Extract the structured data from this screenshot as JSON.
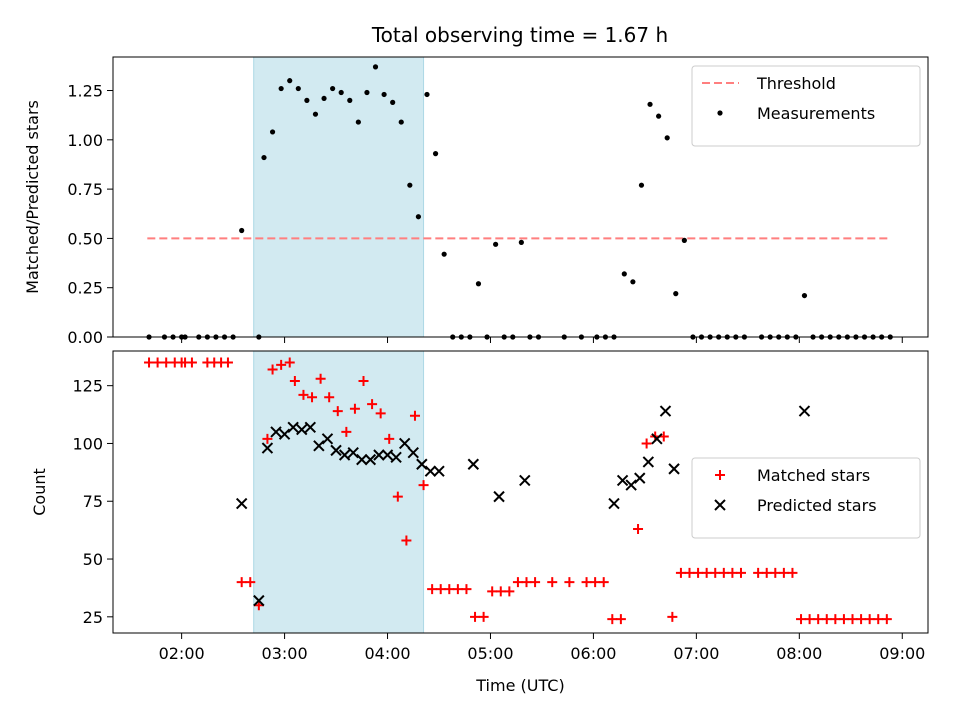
{
  "title": "Total observing time = 1.67 h",
  "colors": {
    "threshold": "#ff7f7f",
    "measurements": "#000000",
    "matched": "#ff0000",
    "predicted": "#000000",
    "highlight": "#add8e6"
  },
  "chart_data": [
    {
      "type": "scatter",
      "ylabel": "Matched/Predicted stars",
      "xlabel": "",
      "xlim": [
        "01:20",
        "09:15"
      ],
      "ylim": [
        0,
        1.42
      ],
      "yticks": [
        "0.00",
        "0.25",
        "0.50",
        "0.75",
        "1.00",
        "1.25"
      ],
      "highlight_span": [
        "02:42",
        "04:21"
      ],
      "legend_position": "upper right",
      "threshold": {
        "name": "Threshold",
        "value": 0.5,
        "x_range": [
          "01:40",
          "08:52"
        ]
      },
      "series": [
        {
          "name": "Measurements",
          "points": [
            [
              "01:41",
              0
            ],
            [
              "01:50",
              0
            ],
            [
              "01:55",
              0
            ],
            [
              "02:00",
              0
            ],
            [
              "02:02",
              0
            ],
            [
              "02:10",
              0
            ],
            [
              "02:15",
              0
            ],
            [
              "02:20",
              0
            ],
            [
              "02:25",
              0
            ],
            [
              "02:30",
              0
            ],
            [
              "02:35",
              0.54
            ],
            [
              "02:45",
              0
            ],
            [
              "02:48",
              0.91
            ],
            [
              "02:53",
              1.04
            ],
            [
              "02:58",
              1.26
            ],
            [
              "03:03",
              1.3
            ],
            [
              "03:08",
              1.26
            ],
            [
              "03:13",
              1.2
            ],
            [
              "03:18",
              1.13
            ],
            [
              "03:23",
              1.21
            ],
            [
              "03:28",
              1.26
            ],
            [
              "03:33",
              1.24
            ],
            [
              "03:38",
              1.2
            ],
            [
              "03:43",
              1.09
            ],
            [
              "03:48",
              1.24
            ],
            [
              "03:53",
              1.37
            ],
            [
              "03:58",
              1.23
            ],
            [
              "04:03",
              1.19
            ],
            [
              "04:08",
              1.09
            ],
            [
              "04:13",
              0.77
            ],
            [
              "04:18",
              0.61
            ],
            [
              "04:23",
              1.23
            ],
            [
              "04:28",
              0.93
            ],
            [
              "04:33",
              0.42
            ],
            [
              "04:38",
              0
            ],
            [
              "04:43",
              0
            ],
            [
              "04:48",
              0
            ],
            [
              "04:53",
              0.27
            ],
            [
              "04:58",
              0
            ],
            [
              "05:03",
              0.47
            ],
            [
              "05:08",
              0
            ],
            [
              "05:13",
              0
            ],
            [
              "05:18",
              0.48
            ],
            [
              "05:23",
              0
            ],
            [
              "05:28",
              0
            ],
            [
              "05:43",
              0
            ],
            [
              "05:53",
              0
            ],
            [
              "06:02",
              0
            ],
            [
              "06:07",
              0
            ],
            [
              "06:12",
              0
            ],
            [
              "06:18",
              0.32
            ],
            [
              "06:23",
              0.28
            ],
            [
              "06:28",
              0.77
            ],
            [
              "06:33",
              1.18
            ],
            [
              "06:38",
              1.12
            ],
            [
              "06:43",
              1.01
            ],
            [
              "06:48",
              0.22
            ],
            [
              "06:53",
              0.49
            ],
            [
              "06:58",
              0
            ],
            [
              "07:03",
              0
            ],
            [
              "07:08",
              0
            ],
            [
              "07:13",
              0
            ],
            [
              "07:18",
              0
            ],
            [
              "07:23",
              0
            ],
            [
              "07:28",
              0
            ],
            [
              "07:38",
              0
            ],
            [
              "07:43",
              0
            ],
            [
              "07:48",
              0
            ],
            [
              "07:53",
              0
            ],
            [
              "07:58",
              0
            ],
            [
              "08:03",
              0.21
            ],
            [
              "08:08",
              0
            ],
            [
              "08:13",
              0
            ],
            [
              "08:18",
              0
            ],
            [
              "08:23",
              0
            ],
            [
              "08:28",
              0
            ],
            [
              "08:33",
              0
            ],
            [
              "08:38",
              0
            ],
            [
              "08:43",
              0
            ],
            [
              "08:48",
              0
            ],
            [
              "08:53",
              0
            ]
          ]
        }
      ]
    },
    {
      "type": "scatter",
      "ylabel": "Count",
      "xlabel": "Time (UTC)",
      "xlim": [
        "01:20",
        "09:15"
      ],
      "ylim": [
        18,
        140
      ],
      "yticks": [
        "25",
        "50",
        "75",
        "100",
        "125"
      ],
      "xticks": [
        "02:00",
        "03:00",
        "04:00",
        "05:00",
        "06:00",
        "07:00",
        "08:00",
        "09:00"
      ],
      "highlight_span": [
        "02:42",
        "04:21"
      ],
      "legend_position": "center right",
      "series": [
        {
          "name": "Matched stars",
          "marker": "plus",
          "points": [
            [
              "01:41",
              135
            ],
            [
              "01:46",
              135
            ],
            [
              "01:51",
              135
            ],
            [
              "01:56",
              135
            ],
            [
              "02:00",
              135
            ],
            [
              "02:02",
              135
            ],
            [
              "02:06",
              135
            ],
            [
              "02:15",
              135
            ],
            [
              "02:19",
              135
            ],
            [
              "02:23",
              135
            ],
            [
              "02:27",
              135
            ],
            [
              "02:35",
              40
            ],
            [
              "02:40",
              40
            ],
            [
              "02:45",
              30
            ],
            [
              "02:50",
              102
            ],
            [
              "02:53",
              132
            ],
            [
              "02:58",
              134
            ],
            [
              "03:03",
              135
            ],
            [
              "03:06",
              127
            ],
            [
              "03:11",
              121
            ],
            [
              "03:16",
              120
            ],
            [
              "03:21",
              128
            ],
            [
              "03:26",
              120
            ],
            [
              "03:31",
              114
            ],
            [
              "03:36",
              105
            ],
            [
              "03:41",
              115
            ],
            [
              "03:46",
              127
            ],
            [
              "03:51",
              117
            ],
            [
              "03:56",
              113
            ],
            [
              "04:01",
              102
            ],
            [
              "04:06",
              77
            ],
            [
              "04:11",
              58
            ],
            [
              "04:16",
              112
            ],
            [
              "04:21",
              82
            ],
            [
              "04:26",
              37
            ],
            [
              "04:31",
              37
            ],
            [
              "04:36",
              37
            ],
            [
              "04:41",
              37
            ],
            [
              "04:46",
              37
            ],
            [
              "04:51",
              25
            ],
            [
              "04:56",
              25
            ],
            [
              "05:01",
              36
            ],
            [
              "05:06",
              36
            ],
            [
              "05:11",
              36
            ],
            [
              "05:16",
              40
            ],
            [
              "05:21",
              40
            ],
            [
              "05:26",
              40
            ],
            [
              "05:36",
              40
            ],
            [
              "05:46",
              40
            ],
            [
              "05:56",
              40
            ],
            [
              "06:01",
              40
            ],
            [
              "06:06",
              40
            ],
            [
              "06:11",
              24
            ],
            [
              "06:16",
              24
            ],
            [
              "06:26",
              63
            ],
            [
              "06:31",
              100
            ],
            [
              "06:36",
              103
            ],
            [
              "06:41",
              103
            ],
            [
              "06:46",
              25
            ],
            [
              "06:51",
              44
            ],
            [
              "06:56",
              44
            ],
            [
              "07:01",
              44
            ],
            [
              "07:06",
              44
            ],
            [
              "07:11",
              44
            ],
            [
              "07:16",
              44
            ],
            [
              "07:21",
              44
            ],
            [
              "07:26",
              44
            ],
            [
              "07:36",
              44
            ],
            [
              "07:41",
              44
            ],
            [
              "07:46",
              44
            ],
            [
              "07:51",
              44
            ],
            [
              "07:56",
              44
            ],
            [
              "08:01",
              24
            ],
            [
              "08:06",
              24
            ],
            [
              "08:11",
              24
            ],
            [
              "08:16",
              24
            ],
            [
              "08:21",
              24
            ],
            [
              "08:26",
              24
            ],
            [
              "08:31",
              24
            ],
            [
              "08:36",
              24
            ],
            [
              "08:41",
              24
            ],
            [
              "08:46",
              24
            ],
            [
              "08:51",
              24
            ]
          ]
        },
        {
          "name": "Predicted stars",
          "marker": "x",
          "points": [
            [
              "02:35",
              74
            ],
            [
              "02:45",
              32
            ],
            [
              "02:50",
              98
            ],
            [
              "02:55",
              105
            ],
            [
              "03:00",
              104
            ],
            [
              "03:05",
              107
            ],
            [
              "03:10",
              106
            ],
            [
              "03:15",
              107
            ],
            [
              "03:20",
              99
            ],
            [
              "03:25",
              102
            ],
            [
              "03:30",
              97
            ],
            [
              "03:35",
              95
            ],
            [
              "03:40",
              96
            ],
            [
              "03:45",
              93
            ],
            [
              "03:50",
              93
            ],
            [
              "03:55",
              95
            ],
            [
              "04:00",
              95
            ],
            [
              "04:05",
              94
            ],
            [
              "04:10",
              100
            ],
            [
              "04:15",
              96
            ],
            [
              "04:20",
              91
            ],
            [
              "04:25",
              88
            ],
            [
              "04:30",
              88
            ],
            [
              "04:50",
              91
            ],
            [
              "05:05",
              77
            ],
            [
              "05:20",
              84
            ],
            [
              "06:12",
              74
            ],
            [
              "06:17",
              84
            ],
            [
              "06:22",
              82
            ],
            [
              "06:27",
              85
            ],
            [
              "06:32",
              92
            ],
            [
              "06:37",
              102
            ],
            [
              "06:42",
              114
            ],
            [
              "06:47",
              89
            ],
            [
              "08:03",
              114
            ]
          ]
        }
      ]
    }
  ]
}
